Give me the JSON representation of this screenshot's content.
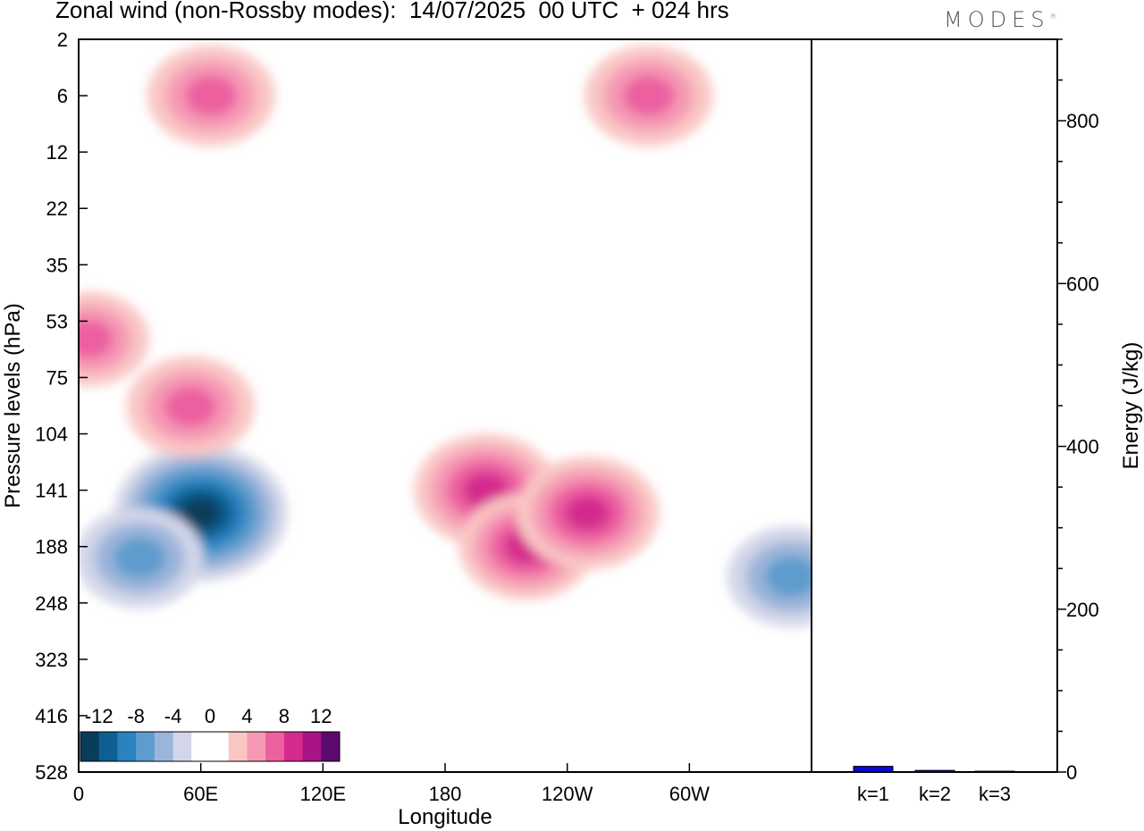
{
  "header": {
    "title": "Zonal wind (non-Rossby modes):  14/07/2025  00 UTC  + 024 hrs",
    "brand": "MODES",
    "brand_mark": "®"
  },
  "chart_data": [
    {
      "type": "heatmap",
      "title": "Zonal wind (non-Rossby modes):  14/07/2025  00 UTC  + 024 hrs",
      "xlabel": "Longitude",
      "ylabel": "Pressure levels (hPa)",
      "x_ticks": [
        "0",
        "60E",
        "120E",
        "180",
        "120W",
        "60W"
      ],
      "y_ticks": [
        "2",
        "6",
        "12",
        "22",
        "35",
        "53",
        "75",
        "104",
        "141",
        "188",
        "248",
        "323",
        "416",
        "528"
      ],
      "colorbar": {
        "labels": [
          "-12",
          "-8",
          "-4",
          "0",
          "4",
          "8",
          "12"
        ],
        "levels": [
          -14,
          -12,
          -10,
          -8,
          -6,
          -4,
          -2,
          0,
          2,
          4,
          6,
          8,
          10,
          12,
          14
        ],
        "colors": [
          "#0a3d5c",
          "#0e5f92",
          "#2b82c0",
          "#5d9ccc",
          "#9bb4da",
          "#d2d6e8",
          "#ffffff",
          "#ffffff",
          "#f9c6c4",
          "#f599b4",
          "#ec60a0",
          "#d42a8e",
          "#a81484",
          "#5c0a6e"
        ]
      },
      "features": [
        {
          "lon": 200,
          "lev": 141,
          "value": 10
        },
        {
          "lon": 220,
          "lev": 188,
          "value": 9
        },
        {
          "lon": 250,
          "lev": 160,
          "value": 10
        },
        {
          "lon": 60,
          "lev": 160,
          "value": -14
        },
        {
          "lon": 30,
          "lev": 200,
          "value": -8
        },
        {
          "lon": 350,
          "lev": 220,
          "value": -8
        },
        {
          "lon": 5,
          "lev": 60,
          "value": 7
        },
        {
          "lon": 55,
          "lev": 90,
          "value": 8
        },
        {
          "lon": 65,
          "lev": 6,
          "value": 8
        },
        {
          "lon": 280,
          "lev": 6,
          "value": 8
        }
      ]
    },
    {
      "type": "bar",
      "categories": [
        "k=1",
        "k=2",
        "k=3"
      ],
      "values": [
        7,
        2,
        1
      ],
      "ylabel": "Energy (J/kg)",
      "ylim": [
        0,
        900
      ],
      "y_ticks": [
        0,
        200,
        400,
        600,
        800
      ],
      "colors": [
        "#0a0ad2",
        "#0a0ad2",
        "#0a0ad2"
      ]
    }
  ]
}
